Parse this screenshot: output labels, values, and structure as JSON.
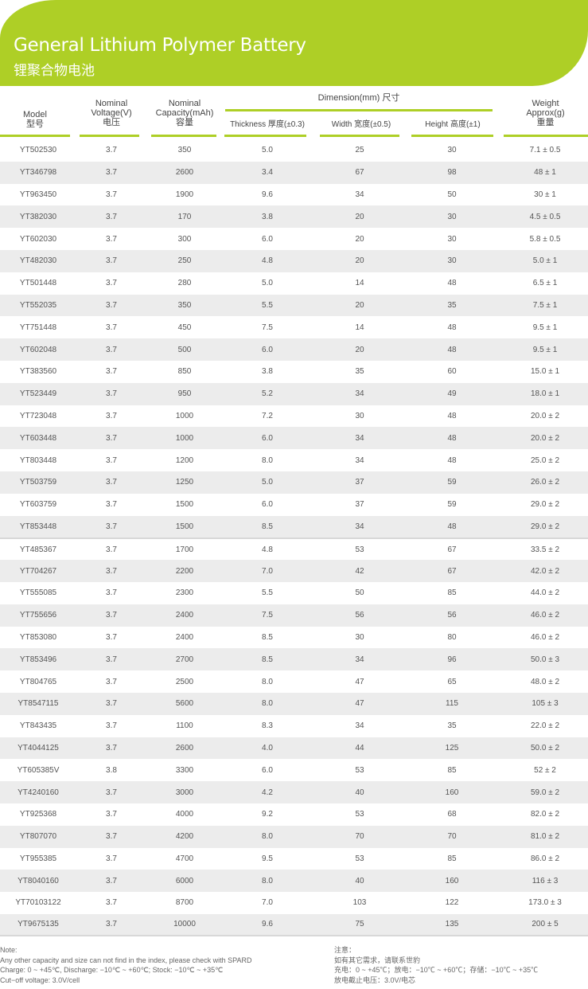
{
  "header": {
    "title": "General Lithium Polymer Battery",
    "subtitle": "锂聚合物电池",
    "brand_color": "#aecf26"
  },
  "columns": {
    "model": [
      "Model",
      "型号"
    ],
    "voltage": [
      "Nominal",
      "Voltage(V)",
      "电压"
    ],
    "capacity": [
      "Nominal",
      "Capacity(mAh)",
      "容量"
    ],
    "dimension": "Dimension(mm) 尺寸",
    "thickness": "Thickness 厚度(±0.3)",
    "width": "Width 宽度(±0.5)",
    "height": "Height 高度(±1)",
    "weight": [
      "Weight",
      "Approx(g)",
      "重量"
    ]
  },
  "rows": [
    [
      "YT502530",
      "3.7",
      "350",
      "5.0",
      "25",
      "30",
      "7.1 ± 0.5"
    ],
    [
      "YT346798",
      "3.7",
      "2600",
      "3.4",
      "67",
      "98",
      "48 ± 1"
    ],
    [
      "YT963450",
      "3.7",
      "1900",
      "9.6",
      "34",
      "50",
      "30 ± 1"
    ],
    [
      "YT382030",
      "3.7",
      "170",
      "3.8",
      "20",
      "30",
      "4.5 ± 0.5"
    ],
    [
      "YT602030",
      "3.7",
      "300",
      "6.0",
      "20",
      "30",
      "5.8 ± 0.5"
    ],
    [
      "YT482030",
      "3.7",
      "250",
      "4.8",
      "20",
      "30",
      "5.0 ± 1"
    ],
    [
      "YT501448",
      "3.7",
      "280",
      "5.0",
      "14",
      "48",
      "6.5 ± 1"
    ],
    [
      "YT552035",
      "3.7",
      "350",
      "5.5",
      "20",
      "35",
      "7.5 ± 1"
    ],
    [
      "YT751448",
      "3.7",
      "450",
      "7.5",
      "14",
      "48",
      "9.5 ± 1"
    ],
    [
      "YT602048",
      "3.7",
      "500",
      "6.0",
      "20",
      "48",
      "9.5 ± 1"
    ],
    [
      "YT383560",
      "3.7",
      "850",
      "3.8",
      "35",
      "60",
      "15.0 ± 1"
    ],
    [
      "YT523449",
      "3.7",
      "950",
      "5.2",
      "34",
      "49",
      "18.0 ± 1"
    ],
    [
      "YT723048",
      "3.7",
      "1000",
      "7.2",
      "30",
      "48",
      "20.0 ± 2"
    ],
    [
      "YT603448",
      "3.7",
      "1000",
      "6.0",
      "34",
      "48",
      "20.0 ± 2"
    ],
    [
      "YT803448",
      "3.7",
      "1200",
      "8.0",
      "34",
      "48",
      "25.0 ± 2"
    ],
    [
      "YT503759",
      "3.7",
      "1250",
      "5.0",
      "37",
      "59",
      "26.0 ± 2"
    ],
    [
      "YT603759",
      "3.7",
      "1500",
      "6.0",
      "37",
      "59",
      "29.0 ± 2"
    ],
    [
      "YT853448",
      "3.7",
      "1500",
      "8.5",
      "34",
      "48",
      "29.0 ± 2"
    ],
    [
      "YT485367",
      "3.7",
      "1700",
      "4.8",
      "53",
      "67",
      "33.5 ± 2"
    ],
    [
      "YT704267",
      "3.7",
      "2200",
      "7.0",
      "42",
      "67",
      "42.0 ± 2"
    ],
    [
      "YT555085",
      "3.7",
      "2300",
      "5.5",
      "50",
      "85",
      "44.0 ± 2"
    ],
    [
      "YT755656",
      "3.7",
      "2400",
      "7.5",
      "56",
      "56",
      "46.0 ± 2"
    ],
    [
      "YT853080",
      "3.7",
      "2400",
      "8.5",
      "30",
      "80",
      "46.0 ± 2"
    ],
    [
      "YT853496",
      "3.7",
      "2700",
      "8.5",
      "34",
      "96",
      "50.0 ± 3"
    ],
    [
      "YT804765",
      "3.7",
      "2500",
      "8.0",
      "47",
      "65",
      "48.0 ± 2"
    ],
    [
      "YT8547115",
      "3.7",
      "5600",
      "8.0",
      "47",
      "115",
      "105 ± 3"
    ],
    [
      "YT843435",
      "3.7",
      "1100",
      "8.3",
      "34",
      "35",
      "22.0 ± 2"
    ],
    [
      "YT4044125",
      "3.7",
      "2600",
      "4.0",
      "44",
      "125",
      "50.0 ± 2"
    ],
    [
      "YT605385V",
      "3.8",
      "3300",
      "6.0",
      "53",
      "85",
      "52 ± 2"
    ],
    [
      "YT4240160",
      "3.7",
      "3000",
      "4.2",
      "40",
      "160",
      "59.0 ± 2"
    ],
    [
      "YT925368",
      "3.7",
      "4000",
      "9.2",
      "53",
      "68",
      "82.0 ± 2"
    ],
    [
      "YT807070",
      "3.7",
      "4200",
      "8.0",
      "70",
      "70",
      "81.0 ± 2"
    ],
    [
      "YT955385",
      "3.7",
      "4700",
      "9.5",
      "53",
      "85",
      "86.0 ± 2"
    ],
    [
      "YT8040160",
      "3.7",
      "6000",
      "8.0",
      "40",
      "160",
      "116 ± 3"
    ],
    [
      "YT70103122",
      "3.7",
      "8700",
      "7.0",
      "103",
      "122",
      "173.0 ± 3"
    ],
    [
      "YT9675135",
      "3.7",
      "10000",
      "9.6",
      "75",
      "135",
      "200 ± 5"
    ]
  ],
  "notes_en": [
    "Note:",
    "Any other capacity and size can not find in the index, please check with SPARD",
    "Charge: 0 ~ +45℃, Discharge: −10℃ ~ +60℃;  Stock: −10℃ ~ +35℃",
    "Cut−off voltage: 3.0V/cell"
  ],
  "notes_cn": [
    "注意：",
    "如有其它需求，请联系世豹",
    "充电：0 ~ +45℃；放电：−10℃ ~ +60℃；存储：−10℃ ~ +35℃",
    "放电截止电压：3.0V/电芯"
  ]
}
